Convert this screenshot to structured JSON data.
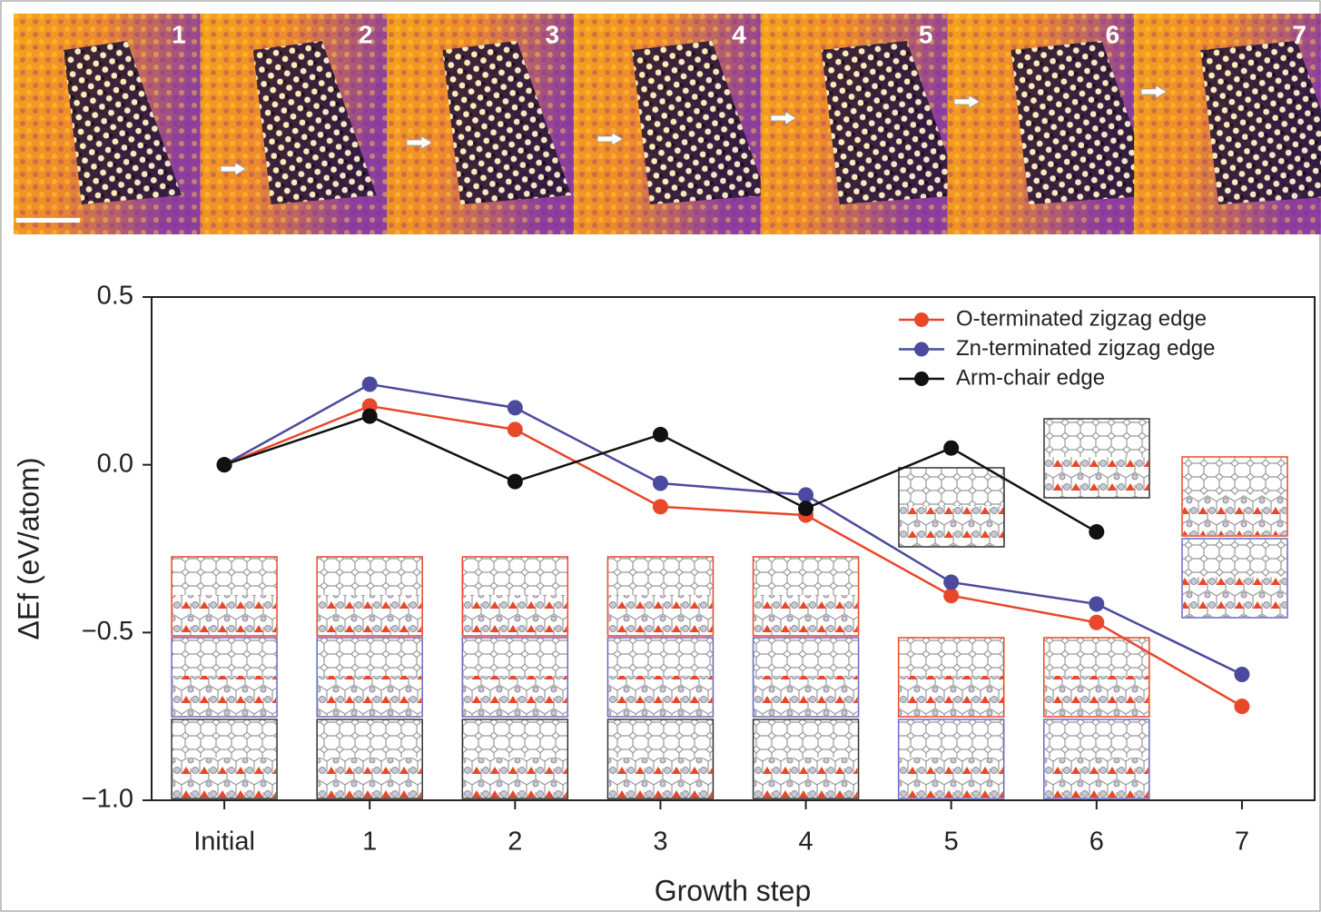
{
  "images": {
    "labels": [
      "1",
      "2",
      "3",
      "4",
      "5",
      "6",
      "7"
    ]
  },
  "chart_data": {
    "type": "line",
    "x_label": "Growth step",
    "y_label": "ΔEf (eV/atom)",
    "categories": [
      "Initial",
      "1",
      "2",
      "3",
      "4",
      "5",
      "6",
      "7"
    ],
    "series": [
      {
        "name": "O-terminated zigzag edge",
        "color": "#e8472a",
        "values": [
          0.0,
          0.175,
          0.105,
          -0.125,
          -0.15,
          -0.39,
          -0.47,
          -0.72
        ]
      },
      {
        "name": "Zn-terminated zigzag edge",
        "color": "#4b4a9e",
        "values": [
          0.0,
          0.24,
          0.17,
          -0.055,
          -0.09,
          -0.35,
          -0.415,
          -0.625
        ]
      },
      {
        "name": "Arm-chair edge",
        "color": "#111111",
        "values": [
          0.0,
          0.145,
          -0.05,
          0.09,
          -0.13,
          0.05,
          -0.2,
          null
        ]
      }
    ],
    "ylim": [
      -1.0,
      0.5
    ],
    "yticks": [
      {
        "value": -1.0,
        "label": "−1.0"
      },
      {
        "value": -0.5,
        "label": "−0.5"
      },
      {
        "value": 0.0,
        "label": "0.0"
      },
      0.5
    ],
    "legend": "upper right",
    "grid": false
  }
}
